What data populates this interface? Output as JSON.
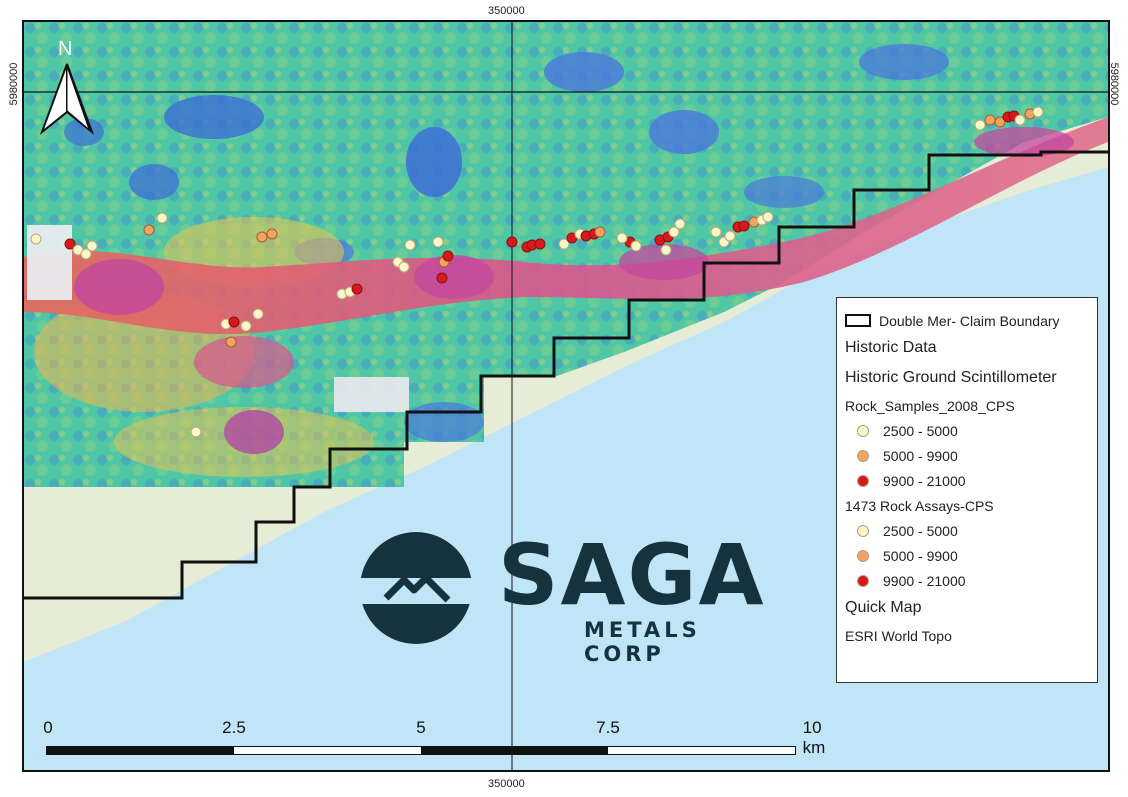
{
  "coords": {
    "top": "350000",
    "bottom": "350000",
    "left": "5980000",
    "right": "5980000"
  },
  "legend": {
    "claim_boundary": "Double Mer- Claim Boundary",
    "historic_data": "Historic Data",
    "ground_scint": "Historic Ground Scintillometer",
    "rock_2008": "Rock_Samples_2008_CPS",
    "rock_2008_items": [
      {
        "label": "2500 - 5000",
        "color": "#fdf6c8"
      },
      {
        "label": "5000 - 9900",
        "color": "#f4a460"
      },
      {
        "label": "9900 - 21000",
        "color": "#d7191c"
      }
    ],
    "rock_1473": "1473 Rock Assays-CPS",
    "rock_1473_items": [
      {
        "label": "2500 - 5000",
        "color": "#fdf6c8"
      },
      {
        "label": "5000 - 9900",
        "color": "#f4a460"
      },
      {
        "label": "9900 - 21000",
        "color": "#d7191c"
      }
    ],
    "quick_map": "Quick Map",
    "esri": "ESRI World Topo"
  },
  "scale": {
    "labels": [
      "0",
      "2.5",
      "5",
      "7.5",
      "10 km"
    ]
  },
  "north": {
    "letter": "N",
    "icon": "north-arrow-icon"
  },
  "logo": {
    "word": "SAGA",
    "sub": "METALS CORP",
    "color": "#15323d"
  },
  "colors": {
    "water": "#bfe5f7",
    "shore": "#e6ecd6",
    "claim_line": "#111111"
  }
}
